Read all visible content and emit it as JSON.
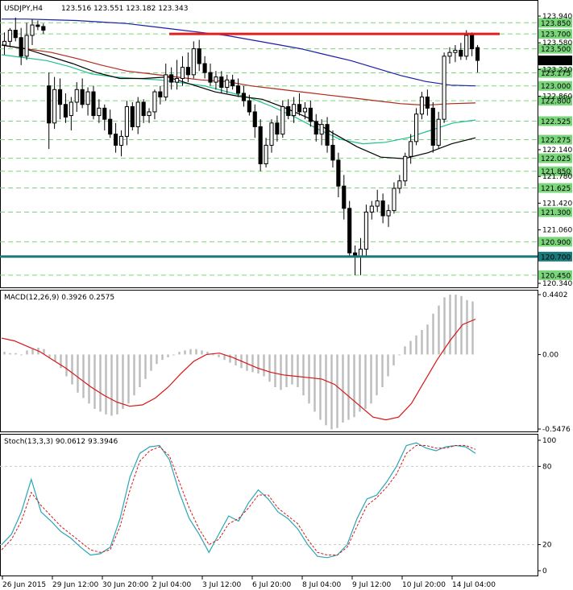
{
  "header": {
    "symbol": "USDJPY,H4",
    "ohlc": "123.516 123.551 123.182 123.343",
    "macd_label": "MACD(12,26,9) 0.3926 0.2575",
    "stoch_label": "Stoch(13,3,3) 90.0612 93.3946"
  },
  "colors": {
    "candle_bull": "#ffffff",
    "candle_bear": "#000000",
    "sma_long": "#1c1ca8",
    "sma_mid": "#b0281e",
    "ema_fast": "#1fbf8f",
    "sma_black": "#000000",
    "resistance": "#e01f1f",
    "support": "#1a7a7a",
    "level_box": "#7bd67b",
    "macd_hist": "#bcbcbc",
    "macd_signal": "#d61515",
    "stoch_main": "#2aa6b5",
    "stoch_signal": "#d61515"
  },
  "price_axis": {
    "ticks": [
      "123.940",
      "123.580",
      "123.220",
      "122.860",
      "122.140",
      "121.780",
      "121.420",
      "121.060",
      "120.340"
    ],
    "current_price": "123.343",
    "resistance_level": "123.700",
    "support_level": "120.700",
    "levels": [
      "123.850",
      "123.700",
      "123.500",
      "123.175",
      "123.000",
      "122.800",
      "122.525",
      "122.275",
      "122.025",
      "121.850",
      "121.625",
      "121.300",
      "120.900",
      "120.700",
      "120.450"
    ]
  },
  "macd_axis": {
    "ticks": [
      "0.4402",
      "0.00",
      "-0.5476"
    ]
  },
  "stoch_axis": {
    "ticks": [
      "100",
      "80",
      "20",
      "0"
    ]
  },
  "time_axis": [
    "26 Jun 2015",
    "29 Jun 12:00",
    "30 Jun 20:00",
    "2 Jul 04:00",
    "3 Jul 12:00",
    "6 Jul 20:00",
    "8 Jul 04:00",
    "9 Jul 12:00",
    "10 Jul 20:00",
    "14 Jul 04:00"
  ],
  "chart_data": {
    "type": "candlestick",
    "title": "USDJPY,H4",
    "ylim": [
      120.34,
      123.94
    ],
    "candles": [
      {
        "o": 123.55,
        "h": 123.72,
        "l": 123.42,
        "c": 123.6
      },
      {
        "o": 123.6,
        "h": 123.78,
        "l": 123.52,
        "c": 123.75
      },
      {
        "o": 123.75,
        "h": 123.92,
        "l": 123.6,
        "c": 123.65
      },
      {
        "o": 123.65,
        "h": 123.78,
        "l": 123.28,
        "c": 123.4
      },
      {
        "o": 123.4,
        "h": 123.85,
        "l": 123.35,
        "c": 123.68
      },
      {
        "o": 123.68,
        "h": 123.9,
        "l": 123.55,
        "c": 123.82
      },
      {
        "o": 123.82,
        "h": 123.88,
        "l": 123.75,
        "c": 123.8
      },
      {
        "o": 123.8,
        "h": 123.84,
        "l": 123.7,
        "c": 123.75
      },
      {
        "o": 123.0,
        "h": 123.18,
        "l": 122.15,
        "c": 122.5
      },
      {
        "o": 122.5,
        "h": 123.12,
        "l": 122.42,
        "c": 122.95
      },
      {
        "o": 122.95,
        "h": 123.1,
        "l": 122.55,
        "c": 122.75
      },
      {
        "o": 122.75,
        "h": 122.9,
        "l": 122.5,
        "c": 122.58
      },
      {
        "o": 122.6,
        "h": 122.85,
        "l": 122.4,
        "c": 122.78
      },
      {
        "o": 122.78,
        "h": 123.05,
        "l": 122.65,
        "c": 122.95
      },
      {
        "o": 122.95,
        "h": 123.1,
        "l": 122.7,
        "c": 122.75
      },
      {
        "o": 122.75,
        "h": 122.98,
        "l": 122.6,
        "c": 122.92
      },
      {
        "o": 122.92,
        "h": 123.0,
        "l": 122.55,
        "c": 122.6
      },
      {
        "o": 122.6,
        "h": 122.82,
        "l": 122.5,
        "c": 122.7
      },
      {
        "o": 122.7,
        "h": 122.75,
        "l": 122.4,
        "c": 122.55
      },
      {
        "o": 122.55,
        "h": 122.68,
        "l": 122.3,
        "c": 122.35
      },
      {
        "o": 122.35,
        "h": 122.5,
        "l": 122.1,
        "c": 122.2
      },
      {
        "o": 122.2,
        "h": 122.4,
        "l": 122.05,
        "c": 122.32
      },
      {
        "o": 122.32,
        "h": 122.8,
        "l": 122.2,
        "c": 122.72
      },
      {
        "o": 122.72,
        "h": 122.78,
        "l": 122.4,
        "c": 122.45
      },
      {
        "o": 122.45,
        "h": 122.85,
        "l": 122.35,
        "c": 122.78
      },
      {
        "o": 122.78,
        "h": 122.82,
        "l": 122.5,
        "c": 122.6
      },
      {
        "o": 122.6,
        "h": 122.7,
        "l": 122.5,
        "c": 122.65
      },
      {
        "o": 122.65,
        "h": 122.95,
        "l": 122.55,
        "c": 122.92
      },
      {
        "o": 122.92,
        "h": 123.0,
        "l": 122.75,
        "c": 122.85
      },
      {
        "o": 122.85,
        "h": 123.3,
        "l": 122.8,
        "c": 123.15
      },
      {
        "o": 123.15,
        "h": 123.25,
        "l": 122.95,
        "c": 123.05
      },
      {
        "o": 123.05,
        "h": 123.35,
        "l": 122.95,
        "c": 123.1
      },
      {
        "o": 123.1,
        "h": 123.4,
        "l": 123.0,
        "c": 123.25
      },
      {
        "o": 123.25,
        "h": 123.45,
        "l": 123.05,
        "c": 123.15
      },
      {
        "o": 123.15,
        "h": 123.6,
        "l": 123.1,
        "c": 123.5
      },
      {
        "o": 123.5,
        "h": 123.62,
        "l": 123.2,
        "c": 123.3
      },
      {
        "o": 123.3,
        "h": 123.4,
        "l": 123.1,
        "c": 123.18
      },
      {
        "o": 123.18,
        "h": 123.3,
        "l": 123.0,
        "c": 123.05
      },
      {
        "o": 123.05,
        "h": 123.2,
        "l": 122.95,
        "c": 123.12
      },
      {
        "o": 123.12,
        "h": 123.2,
        "l": 122.9,
        "c": 122.98
      },
      {
        "o": 122.98,
        "h": 123.15,
        "l": 122.9,
        "c": 123.08
      },
      {
        "o": 123.08,
        "h": 123.15,
        "l": 122.95,
        "c": 123.0
      },
      {
        "o": 123.0,
        "h": 123.1,
        "l": 122.85,
        "c": 122.9
      },
      {
        "o": 122.9,
        "h": 123.0,
        "l": 122.72,
        "c": 122.8
      },
      {
        "o": 122.8,
        "h": 122.88,
        "l": 122.6,
        "c": 122.65
      },
      {
        "o": 122.65,
        "h": 122.75,
        "l": 122.3,
        "c": 122.45
      },
      {
        "o": 122.45,
        "h": 122.55,
        "l": 121.85,
        "c": 121.95
      },
      {
        "o": 121.95,
        "h": 122.3,
        "l": 121.9,
        "c": 122.2
      },
      {
        "o": 122.2,
        "h": 122.55,
        "l": 122.1,
        "c": 122.5
      },
      {
        "o": 122.5,
        "h": 122.6,
        "l": 122.25,
        "c": 122.35
      },
      {
        "o": 122.35,
        "h": 122.8,
        "l": 122.3,
        "c": 122.72
      },
      {
        "o": 122.72,
        "h": 122.82,
        "l": 122.55,
        "c": 122.6
      },
      {
        "o": 122.6,
        "h": 122.85,
        "l": 122.5,
        "c": 122.75
      },
      {
        "o": 122.75,
        "h": 122.9,
        "l": 122.6,
        "c": 122.65
      },
      {
        "o": 122.65,
        "h": 122.78,
        "l": 122.55,
        "c": 122.7
      },
      {
        "o": 122.7,
        "h": 122.8,
        "l": 122.45,
        "c": 122.52
      },
      {
        "o": 122.52,
        "h": 122.62,
        "l": 122.25,
        "c": 122.35
      },
      {
        "o": 122.35,
        "h": 122.55,
        "l": 122.2,
        "c": 122.48
      },
      {
        "o": 122.48,
        "h": 122.58,
        "l": 122.1,
        "c": 122.2
      },
      {
        "o": 122.2,
        "h": 122.4,
        "l": 121.9,
        "c": 122.0
      },
      {
        "o": 122.0,
        "h": 122.1,
        "l": 121.5,
        "c": 121.65
      },
      {
        "o": 121.65,
        "h": 121.8,
        "l": 121.2,
        "c": 121.35
      },
      {
        "o": 121.35,
        "h": 121.45,
        "l": 120.7,
        "c": 120.75
      },
      {
        "o": 120.75,
        "h": 120.85,
        "l": 120.45,
        "c": 120.7
      },
      {
        "o": 120.7,
        "h": 120.95,
        "l": 120.45,
        "c": 120.8
      },
      {
        "o": 120.8,
        "h": 121.4,
        "l": 120.7,
        "c": 121.3
      },
      {
        "o": 121.3,
        "h": 121.45,
        "l": 121.2,
        "c": 121.38
      },
      {
        "o": 121.38,
        "h": 121.6,
        "l": 121.3,
        "c": 121.45
      },
      {
        "o": 121.45,
        "h": 121.55,
        "l": 121.15,
        "c": 121.25
      },
      {
        "o": 121.25,
        "h": 121.4,
        "l": 121.1,
        "c": 121.32
      },
      {
        "o": 121.32,
        "h": 121.7,
        "l": 121.28,
        "c": 121.62
      },
      {
        "o": 121.62,
        "h": 121.8,
        "l": 121.55,
        "c": 121.72
      },
      {
        "o": 121.72,
        "h": 122.1,
        "l": 121.65,
        "c": 122.05
      },
      {
        "o": 122.05,
        "h": 122.35,
        "l": 121.95,
        "c": 122.25
      },
      {
        "o": 122.25,
        "h": 122.7,
        "l": 122.2,
        "c": 122.62
      },
      {
        "o": 122.62,
        "h": 122.92,
        "l": 122.55,
        "c": 122.85
      },
      {
        "o": 122.85,
        "h": 122.95,
        "l": 122.6,
        "c": 122.7
      },
      {
        "o": 122.7,
        "h": 122.78,
        "l": 122.1,
        "c": 122.2
      },
      {
        "o": 122.2,
        "h": 122.65,
        "l": 122.15,
        "c": 122.55
      },
      {
        "o": 122.55,
        "h": 123.45,
        "l": 122.5,
        "c": 123.4
      },
      {
        "o": 123.4,
        "h": 123.52,
        "l": 123.3,
        "c": 123.45
      },
      {
        "o": 123.45,
        "h": 123.55,
        "l": 123.32,
        "c": 123.48
      },
      {
        "o": 123.48,
        "h": 123.58,
        "l": 123.35,
        "c": 123.4
      },
      {
        "o": 123.4,
        "h": 123.75,
        "l": 123.35,
        "c": 123.68
      },
      {
        "o": 123.68,
        "h": 123.72,
        "l": 123.4,
        "c": 123.5
      },
      {
        "o": 123.516,
        "h": 123.551,
        "l": 123.182,
        "c": 123.343
      }
    ],
    "sma_long": [
      123.9,
      123.9,
      123.89,
      123.88,
      123.86,
      123.84,
      123.8,
      123.76,
      123.72,
      123.68,
      123.62,
      123.56,
      123.5,
      123.42,
      123.34,
      123.24,
      123.14,
      123.06,
      123.01,
      123.0
    ],
    "sma_mid": [
      123.55,
      123.5,
      123.45,
      123.37,
      123.28,
      123.2,
      123.16,
      123.12,
      123.08,
      123.06,
      123.0,
      122.96,
      122.92,
      122.88,
      122.84,
      122.8,
      122.76,
      122.74,
      122.76,
      122.77
    ],
    "ema_fast": [
      123.42,
      123.38,
      123.34,
      123.26,
      123.16,
      123.12,
      123.1,
      123.08,
      123.04,
      123.0,
      122.92,
      122.84,
      122.72,
      122.58,
      122.42,
      122.28,
      122.22,
      122.24,
      122.3,
      122.4,
      122.5,
      122.54
    ],
    "sma_black": [
      123.55,
      123.5,
      123.4,
      123.3,
      123.18,
      123.1,
      123.1,
      123.12,
      123.02,
      122.92,
      122.86,
      122.82,
      122.7,
      122.56,
      122.36,
      122.18,
      122.04,
      122.02,
      122.1,
      122.22,
      122.3
    ],
    "macd_hist": [
      0.02,
      0.01,
      0.01,
      0.0,
      0.03,
      0.04,
      0.05,
      0.04,
      -0.02,
      -0.05,
      -0.1,
      -0.16,
      -0.22,
      -0.28,
      -0.32,
      -0.36,
      -0.4,
      -0.42,
      -0.44,
      -0.45,
      -0.44,
      -0.4,
      -0.36,
      -0.3,
      -0.24,
      -0.18,
      -0.12,
      -0.07,
      -0.04,
      -0.02,
      0.0,
      0.02,
      0.03,
      0.04,
      0.04,
      0.03,
      0.02,
      0.0,
      -0.02,
      -0.04,
      -0.06,
      -0.08,
      -0.1,
      -0.12,
      -0.13,
      -0.14,
      -0.16,
      -0.2,
      -0.24,
      -0.26,
      -0.24,
      -0.22,
      -0.24,
      -0.3,
      -0.36,
      -0.42,
      -0.48,
      -0.52,
      -0.55,
      -0.54,
      -0.5,
      -0.48,
      -0.46,
      -0.42,
      -0.4,
      -0.36,
      -0.3,
      -0.24,
      -0.16,
      -0.08,
      0.0,
      0.06,
      0.1,
      0.14,
      0.18,
      0.22,
      0.3,
      0.36,
      0.42,
      0.44,
      0.44,
      0.43,
      0.4,
      0.39
    ],
    "macd_signal": [
      0.12,
      0.1,
      0.06,
      0.02,
      -0.04,
      -0.1,
      -0.17,
      -0.24,
      -0.3,
      -0.35,
      -0.38,
      -0.37,
      -0.32,
      -0.24,
      -0.14,
      -0.05,
      0.0,
      0.01,
      -0.02,
      -0.06,
      -0.1,
      -0.13,
      -0.15,
      -0.16,
      -0.17,
      -0.18,
      -0.22,
      -0.3,
      -0.38,
      -0.46,
      -0.48,
      -0.46,
      -0.36,
      -0.2,
      -0.04,
      0.1,
      0.22,
      0.26
    ],
    "stoch_main": [
      20,
      28,
      45,
      70,
      45,
      38,
      30,
      25,
      18,
      12,
      13,
      18,
      40,
      72,
      90,
      95,
      96,
      85,
      60,
      40,
      28,
      14,
      28,
      42,
      38,
      52,
      62,
      55,
      45,
      40,
      32,
      20,
      11,
      10,
      12,
      20,
      40,
      55,
      58,
      68,
      80,
      96,
      98,
      94,
      92,
      95,
      96,
      95,
      90
    ],
    "stoch_signal": [
      16,
      24,
      38,
      60,
      50,
      42,
      34,
      28,
      22,
      16,
      14,
      16,
      34,
      62,
      84,
      92,
      95,
      88,
      68,
      48,
      32,
      20,
      24,
      36,
      40,
      48,
      58,
      58,
      48,
      42,
      36,
      24,
      14,
      12,
      12,
      18,
      34,
      50,
      56,
      64,
      74,
      90,
      96,
      96,
      94,
      94,
      96,
      96,
      93
    ],
    "time_labels": [
      "26 Jun 2015",
      "29 Jun 12:00",
      "30 Jun 20:00",
      "2 Jul 04:00",
      "3 Jul 12:00",
      "6 Jul 20:00",
      "8 Jul 04:00",
      "9 Jul 12:00",
      "10 Jul 20:00",
      "14 Jul 04:00"
    ]
  }
}
